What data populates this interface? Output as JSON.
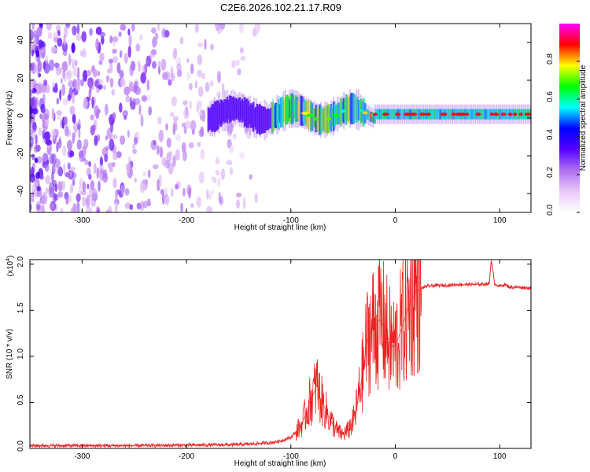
{
  "figure": {
    "title": "C2E6.2026.102.21.17.R09"
  },
  "chart_data": [
    {
      "type": "heatmap",
      "name": "spectrogram",
      "xlabel": "Height of straight line (km)",
      "ylabel": "Frequency (Hz)",
      "xlim": [
        -350,
        130
      ],
      "ylim": [
        -50,
        50
      ],
      "xticks": [
        -300,
        -200,
        -100,
        0,
        100
      ],
      "yticks": [
        -40,
        -20,
        0,
        20,
        40
      ],
      "colorbar": {
        "label": "Normalized spectral amplitude",
        "range": [
          0,
          1
        ],
        "ticks": [
          "0.0",
          "0.2",
          "0.4",
          "0.6",
          "0.8"
        ],
        "tick_values": [
          0,
          0.2,
          0.4,
          0.6,
          0.8
        ],
        "colormap": [
          "#ffffff",
          "#e8c8f8",
          "#b070f0",
          "#5500ff",
          "#0000ff",
          "#00ffff",
          "#00ff00",
          "#ffff00",
          "#ff0000",
          "#ff00ff"
        ]
      },
      "regions": [
        {
          "desc": "noise",
          "x": [
            -350,
            -145
          ],
          "y": [
            -50,
            50
          ],
          "amplitude": 0.12
        },
        {
          "desc": "signal band",
          "x": [
            -180,
            130
          ],
          "center_hz": 2,
          "width_hz": 6,
          "amplitude": 0.9
        }
      ]
    },
    {
      "type": "line",
      "name": "snr",
      "xlabel": "Height of straight line (km)",
      "ylabel": "SNR (10 * v/v)",
      "scale_label": "(x10",
      "scale_exp": "4",
      "scale_close": ")",
      "xlim": [
        -350,
        130
      ],
      "ylim": [
        0,
        2.05
      ],
      "xticks": [
        -300,
        -200,
        -100,
        0,
        100
      ],
      "yticks": [
        "0.0",
        "0.5",
        "1.0",
        "1.5",
        "2.0"
      ],
      "ytick_values": [
        0,
        0.5,
        1.0,
        1.5,
        2.0
      ],
      "color": "#ee2222",
      "series": [
        {
          "name": "SNR",
          "x": [
            -350,
            -250,
            -150,
            -120,
            -110,
            -100,
            -95,
            -90,
            -85,
            -82,
            -78,
            -75,
            -72,
            -68,
            -62,
            -55,
            -50,
            -45,
            -40,
            -37,
            -33,
            -30,
            -28,
            -25,
            -22,
            -18,
            -15,
            -12,
            -10,
            -7,
            -5,
            -2,
            0,
            3,
            6,
            10,
            15,
            20,
            25,
            30,
            40,
            50,
            60,
            70,
            80,
            90,
            92,
            95,
            100,
            105,
            110,
            120,
            130
          ],
          "y": [
            0.03,
            0.03,
            0.04,
            0.06,
            0.08,
            0.12,
            0.18,
            0.25,
            0.4,
            0.5,
            0.6,
            0.7,
            0.55,
            0.45,
            0.3,
            0.18,
            0.15,
            0.2,
            0.3,
            0.45,
            0.7,
            0.9,
            1.1,
            1.25,
            1.3,
            1.35,
            1.4,
            1.35,
            1.3,
            1.2,
            1.15,
            1.1,
            1.12,
            1.2,
            1.3,
            1.45,
            1.6,
            1.7,
            1.74,
            1.76,
            1.77,
            1.77,
            1.78,
            1.78,
            1.78,
            1.79,
            2.05,
            1.79,
            1.76,
            1.78,
            1.75,
            1.75,
            1.74
          ]
        }
      ]
    }
  ]
}
